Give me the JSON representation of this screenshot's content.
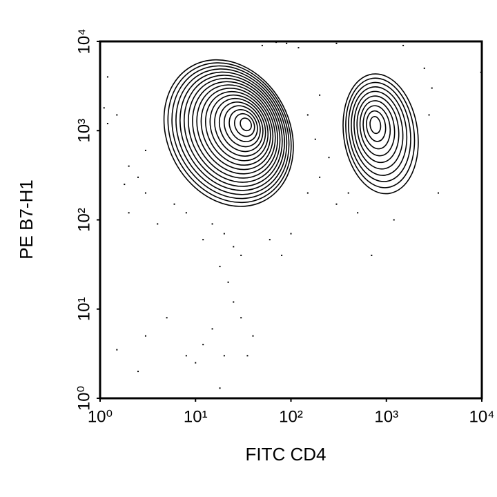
{
  "chart_data": {
    "type": "contour",
    "xlabel": "FITC CD4",
    "ylabel": "PE B7-H1",
    "xscale": "log",
    "yscale": "log",
    "xlim": [
      1,
      10000
    ],
    "ylim": [
      1,
      10000
    ],
    "xticks": [
      {
        "value": 1,
        "label": "10⁰"
      },
      {
        "value": 10,
        "label": "10¹"
      },
      {
        "value": 100,
        "label": "10²"
      },
      {
        "value": 1000,
        "label": "10³"
      },
      {
        "value": 10000,
        "label": "10⁴"
      }
    ],
    "yticks": [
      {
        "value": 1,
        "label": "10⁰"
      },
      {
        "value": 10,
        "label": "10¹"
      },
      {
        "value": 100,
        "label": "10²"
      },
      {
        "value": 1000,
        "label": "10³"
      },
      {
        "value": 10000,
        "label": "10⁴"
      }
    ],
    "color": "#000000",
    "populations": [
      {
        "center": [
          35,
          1200
        ],
        "x_range": [
          4.5,
          110
        ],
        "y_range": [
          110,
          8000
        ],
        "levels": 18
      },
      {
        "center": [
          750,
          1200
        ],
        "x_range": [
          330,
          2300
        ],
        "y_range": [
          170,
          5000
        ],
        "levels": 10
      }
    ],
    "events": {
      "x": [
        2,
        3,
        2.5,
        1.5,
        1.2,
        1.8,
        3,
        6,
        8,
        15,
        20,
        25,
        30,
        12,
        18,
        22,
        25,
        30,
        15,
        12,
        20,
        35,
        40,
        8,
        5,
        3,
        1.5,
        2.5,
        18,
        10,
        60,
        80,
        100,
        150,
        200,
        250,
        180,
        150,
        200,
        120,
        90,
        50,
        70,
        300,
        1500,
        2500,
        3000,
        2800,
        3500,
        1200,
        700,
        500,
        400,
        300,
        10000,
        9800,
        1.2,
        1.1,
        2,
        4
      ],
      "y": [
        400,
        600,
        300,
        1500,
        1200,
        250,
        200,
        150,
        120,
        90,
        70,
        50,
        40,
        60,
        30,
        20,
        12,
        8,
        6,
        4,
        3,
        3,
        5,
        3,
        8,
        5,
        3.5,
        2,
        1.3,
        2.5,
        60,
        40,
        70,
        200,
        300,
        500,
        800,
        1500,
        2500,
        8500,
        9500,
        9000,
        9800,
        9500,
        9000,
        5000,
        3000,
        1500,
        200,
        100,
        40,
        120,
        200,
        150,
        8000,
        4500,
        4000,
        1800,
        120,
        90
      ]
    }
  }
}
